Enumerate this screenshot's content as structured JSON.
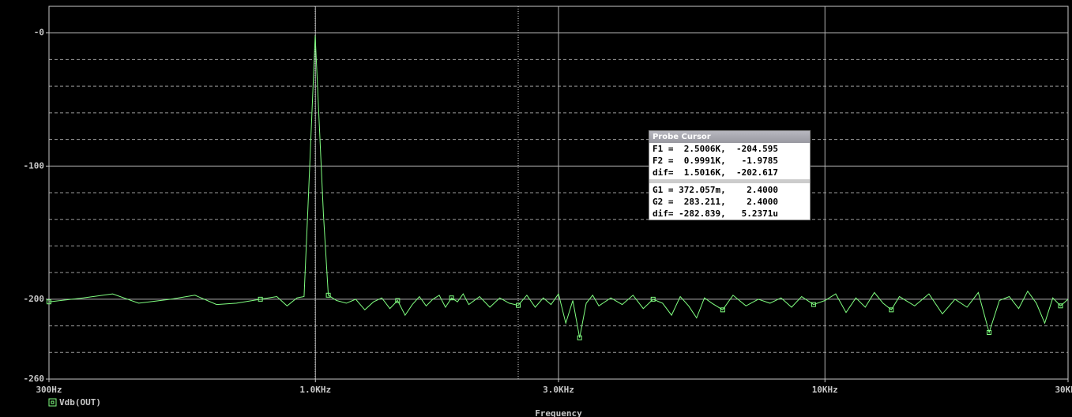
{
  "chart_data": {
    "type": "line",
    "x_label": "Frequency",
    "xscale": "log",
    "xlim": [
      300,
      30000
    ],
    "xticks": [
      {
        "value": 300,
        "label": "300Hz"
      },
      {
        "value": 1000,
        "label": "1.0KHz"
      },
      {
        "value": 3000,
        "label": "3.0KHz"
      },
      {
        "value": 10000,
        "label": "10KHz"
      },
      {
        "value": 30000,
        "label": "30KHz"
      }
    ],
    "ylim": [
      -260,
      20
    ],
    "yticks": [
      {
        "value": 0,
        "label": "-0"
      },
      -100,
      -200,
      -260
    ],
    "minor_yticks": [
      -240,
      -220,
      -180,
      -160,
      -140,
      -120,
      -80,
      -60,
      -40,
      -20
    ],
    "grid": true,
    "cursors_x": [
      2500.6,
      999.1
    ],
    "series": [
      {
        "name": "Vdb(OUT)",
        "color": "#80ff80",
        "x": [
          300,
          350,
          400,
          450,
          520,
          580,
          640,
          700,
          780,
          840,
          880,
          920,
          950,
          967,
          999.1,
          1037,
          1060,
          1100,
          1150,
          1200,
          1250,
          1300,
          1350,
          1400,
          1450,
          1500,
          1550,
          1600,
          1650,
          1700,
          1750,
          1800,
          1850,
          1900,
          1950,
          2000,
          2100,
          2200,
          2300,
          2400,
          2500.6,
          2600,
          2700,
          2800,
          2900,
          3000,
          3100,
          3200,
          3300,
          3400,
          3500,
          3600,
          3800,
          4000,
          4200,
          4400,
          4600,
          4800,
          5000,
          5200,
          5400,
          5600,
          5800,
          6000,
          6300,
          6600,
          7000,
          7400,
          7800,
          8200,
          8600,
          9000,
          9500,
          10000,
          10500,
          11000,
          11500,
          12000,
          12500,
          13000,
          13500,
          14000,
          15000,
          16000,
          17000,
          18000,
          19000,
          20000,
          21000,
          22000,
          23000,
          24000,
          25000,
          26000,
          27000,
          28000,
          29000,
          30000
        ],
        "values": [
          -202,
          -199,
          -196,
          -203,
          -200,
          -197,
          -204,
          -203,
          -200,
          -198,
          -205,
          -199,
          -198,
          -130,
          -1.98,
          -136,
          -197,
          -201,
          -203,
          -200,
          -208,
          -202,
          -199,
          -207,
          -201,
          -212,
          -204,
          -198,
          -205,
          -200,
          -197,
          -206,
          -199,
          -202,
          -196,
          -204,
          -198,
          -206,
          -199,
          -203,
          -204.6,
          -197,
          -206,
          -199,
          -204,
          -196,
          -218,
          -201,
          -229,
          -203,
          -197,
          -205,
          -199,
          -204,
          -197,
          -207,
          -200,
          -203,
          -212,
          -198,
          -205,
          -214,
          -199,
          -203,
          -208,
          -197,
          -205,
          -200,
          -203,
          -199,
          -206,
          -198,
          -204,
          -201,
          -196,
          -210,
          -199,
          -206,
          -195,
          -203,
          -208,
          -198,
          -205,
          -196,
          -211,
          -200,
          -206,
          -195,
          -225,
          -201,
          -198,
          -207,
          -194,
          -203,
          -218,
          -199,
          -205,
          -200
        ]
      }
    ]
  },
  "probe_cursor": {
    "title": "Probe Cursor",
    "rows": [
      "F1 =  2.5006K,  -204.595",
      "F2 =  0.9991K,   -1.9785",
      "dif=  1.5016K,  -202.617"
    ],
    "rows2": [
      "G1 = 372.057m,    2.4000",
      "G2 =  283.211,    2.4000",
      "dif= -282.839,   5.2371u"
    ]
  }
}
